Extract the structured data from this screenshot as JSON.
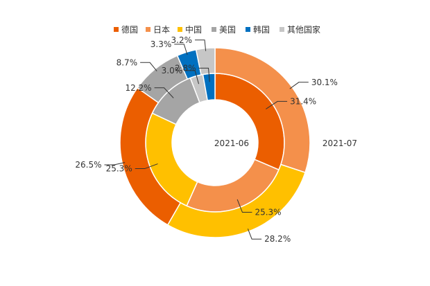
{
  "chart_data": {
    "type": "pie",
    "subtype": "nested-donut",
    "legend": {
      "placement": "top",
      "entries": [
        "德国",
        "日本",
        "中国",
        "美国",
        "韩国",
        "其他国家"
      ]
    },
    "colors": {
      "德国": "#EB5E00",
      "日本": "#F4904B",
      "中国": "#FFC000",
      "美国": "#A5A5A5",
      "韩国": "#0070C0",
      "其他国家": "#C6C6C6"
    },
    "rings": [
      {
        "name": "2021-06",
        "position": "inner",
        "slices": [
          {
            "category": "德国",
            "value": 31.4,
            "label": "31.4%"
          },
          {
            "category": "日本",
            "value": 25.3,
            "label": "25.3%"
          },
          {
            "category": "中国",
            "value": 25.3,
            "label": "25.3%"
          },
          {
            "category": "美国",
            "value": 12.2,
            "label": "12.2%"
          },
          {
            "category": "其他国家",
            "value": 3.0,
            "label": "3.0%"
          },
          {
            "category": "韩国",
            "value": 2.8,
            "label": "2.8%"
          }
        ]
      },
      {
        "name": "2021-07",
        "position": "outer",
        "slices": [
          {
            "category": "日本",
            "value": 30.1,
            "label": "30.1%"
          },
          {
            "category": "中国",
            "value": 28.2,
            "label": "28.2%"
          },
          {
            "category": "德国",
            "value": 26.5,
            "label": "26.5%"
          },
          {
            "category": "美国",
            "value": 8.7,
            "label": "8.7%"
          },
          {
            "category": "韩国",
            "value": 3.3,
            "label": "3.3%"
          },
          {
            "category": "其他国家",
            "value": 3.2,
            "label": "3.2%"
          }
        ]
      }
    ]
  }
}
